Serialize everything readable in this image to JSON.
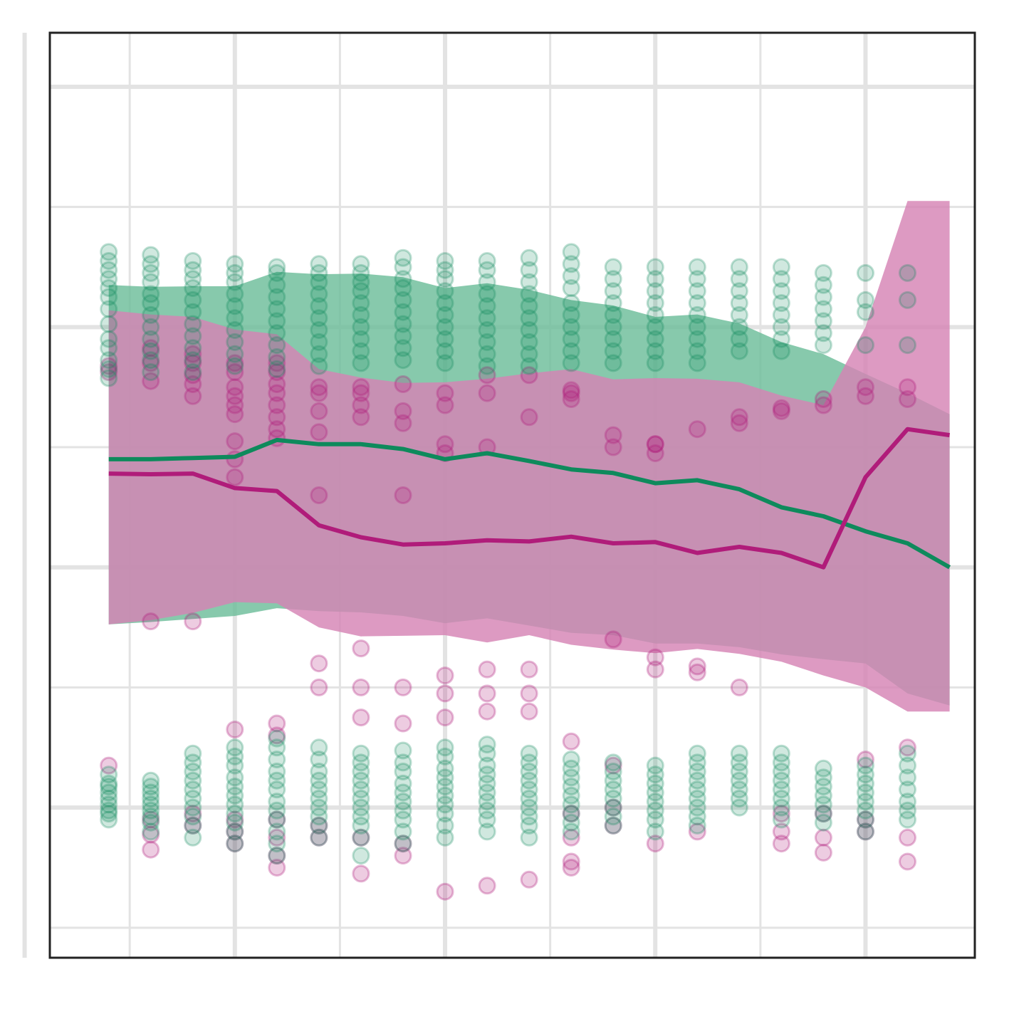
{
  "chart_data": {
    "type": "scatter",
    "title": "",
    "xlabel": "",
    "ylabel": "",
    "xlim": [
      0.6,
      22.6
    ],
    "ylim": [
      -0.65,
      0.89
    ],
    "grid": true,
    "legend": "none",
    "x_major_ticks": [
      0,
      5,
      10,
      15,
      20
    ],
    "x_minor_ticks": [
      2.5,
      7.5,
      12.5,
      17.5
    ],
    "y_major_ticks": [
      -0.4,
      0.0,
      0.4,
      0.8
    ],
    "y_minor_ticks": [
      -0.6,
      -0.2,
      0.2,
      0.6
    ],
    "x": [
      2,
      3,
      4,
      5,
      6,
      7,
      8,
      9,
      10,
      11,
      12,
      13,
      14,
      15,
      16,
      17,
      18,
      19,
      20,
      21,
      22
    ],
    "series": [
      {
        "color": "#0e8a5c",
        "band_color": "#6cbd9a",
        "point_alpha": 0.22,
        "mean": [
          0.18,
          0.18,
          0.182,
          0.184,
          0.212,
          0.205,
          0.205,
          0.197,
          0.18,
          0.19,
          0.177,
          0.163,
          0.157,
          0.14,
          0.145,
          0.13,
          0.1,
          0.085,
          0.06,
          0.04,
          0.0
        ],
        "upper": [
          0.47,
          0.467,
          0.468,
          0.468,
          0.492,
          0.488,
          0.489,
          0.483,
          0.465,
          0.473,
          0.462,
          0.445,
          0.436,
          0.417,
          0.421,
          0.406,
          0.375,
          0.355,
          0.322,
          0.29,
          0.255
        ],
        "lower": [
          -0.095,
          -0.091,
          -0.086,
          -0.081,
          -0.068,
          -0.073,
          -0.075,
          -0.081,
          -0.093,
          -0.085,
          -0.097,
          -0.109,
          -0.113,
          -0.127,
          -0.127,
          -0.133,
          -0.145,
          -0.153,
          -0.16,
          -0.21,
          -0.23
        ],
        "points": [
          [
            0.525,
            0.51,
            0.495,
            0.48,
            0.465,
            0.45,
            0.43,
            0.405,
            0.38,
            0.365,
            0.345,
            0.33,
            0.315,
            -0.345,
            -0.36,
            -0.365,
            -0.375,
            -0.385,
            -0.395,
            -0.405,
            -0.41,
            -0.42
          ],
          [
            0.52,
            0.505,
            0.49,
            0.475,
            0.455,
            0.44,
            0.42,
            0.4,
            0.38,
            0.36,
            0.345,
            0.325,
            -0.355,
            -0.365,
            -0.375,
            -0.385,
            -0.395,
            -0.405,
            -0.415,
            -0.425,
            -0.44
          ],
          [
            0.51,
            0.495,
            0.48,
            0.465,
            0.445,
            0.425,
            0.405,
            0.385,
            0.365,
            0.345,
            0.325,
            -0.31,
            -0.325,
            -0.34,
            -0.355,
            -0.37,
            -0.385,
            -0.4,
            -0.415,
            -0.43,
            -0.45
          ],
          [
            0.505,
            0.49,
            0.475,
            0.455,
            0.435,
            0.415,
            0.395,
            0.375,
            0.355,
            0.335,
            -0.3,
            -0.315,
            -0.33,
            -0.35,
            -0.365,
            -0.38,
            -0.395,
            -0.41,
            -0.425,
            -0.44,
            -0.46
          ],
          [
            0.5,
            0.49,
            0.47,
            0.45,
            0.43,
            0.41,
            0.39,
            0.37,
            0.35,
            0.33,
            -0.285,
            -0.3,
            -0.32,
            -0.34,
            -0.355,
            -0.37,
            -0.39,
            -0.405,
            -0.42,
            -0.44,
            -0.46,
            -0.48
          ],
          [
            0.505,
            0.49,
            0.475,
            0.455,
            0.435,
            0.415,
            0.395,
            0.375,
            0.355,
            0.335,
            -0.3,
            -0.32,
            -0.34,
            -0.355,
            -0.37,
            -0.385,
            -0.4,
            -0.415,
            -0.43,
            -0.45
          ],
          [
            0.505,
            0.49,
            0.475,
            0.46,
            0.44,
            0.42,
            0.4,
            0.38,
            0.36,
            0.34,
            -0.31,
            -0.325,
            -0.34,
            -0.355,
            -0.37,
            -0.385,
            -0.4,
            -0.415,
            -0.43,
            -0.45,
            -0.48
          ],
          [
            0.515,
            0.5,
            0.48,
            0.465,
            0.445,
            0.425,
            0.405,
            0.385,
            0.365,
            0.345,
            -0.305,
            -0.325,
            -0.34,
            -0.36,
            -0.375,
            -0.39,
            -0.405,
            -0.42,
            -0.44,
            -0.46
          ],
          [
            0.51,
            0.495,
            0.48,
            0.46,
            0.44,
            0.42,
            0.4,
            0.38,
            0.36,
            0.34,
            -0.3,
            -0.315,
            -0.335,
            -0.35,
            -0.365,
            -0.38,
            -0.395,
            -0.41,
            -0.43,
            -0.45
          ],
          [
            0.51,
            0.495,
            0.475,
            0.455,
            0.435,
            0.415,
            0.395,
            0.375,
            0.355,
            0.335,
            -0.295,
            -0.31,
            -0.33,
            -0.345,
            -0.36,
            -0.375,
            -0.39,
            -0.405,
            -0.42,
            -0.44
          ],
          [
            0.515,
            0.495,
            0.475,
            0.455,
            0.435,
            0.415,
            0.395,
            0.375,
            0.355,
            0.335,
            -0.31,
            -0.325,
            -0.34,
            -0.355,
            -0.37,
            -0.385,
            -0.4,
            -0.415,
            -0.43,
            -0.45
          ],
          [
            0.525,
            0.505,
            0.485,
            0.465,
            0.44,
            0.42,
            0.4,
            0.38,
            0.36,
            0.34,
            -0.32,
            -0.335,
            -0.35,
            -0.365,
            -0.38,
            -0.395,
            -0.41,
            -0.425,
            -0.44
          ],
          [
            0.5,
            0.48,
            0.46,
            0.44,
            0.42,
            0.4,
            0.38,
            0.36,
            0.34,
            -0.325,
            -0.34,
            -0.355,
            -0.37,
            -0.385,
            -0.4,
            -0.415,
            -0.43
          ],
          [
            0.5,
            0.48,
            0.46,
            0.44,
            0.42,
            0.4,
            0.38,
            0.36,
            0.34,
            -0.33,
            -0.345,
            -0.36,
            -0.375,
            -0.39,
            -0.405,
            -0.42,
            -0.44
          ],
          [
            0.5,
            0.48,
            0.46,
            0.44,
            0.42,
            0.4,
            0.38,
            0.36,
            0.34,
            -0.31,
            -0.325,
            -0.34,
            -0.355,
            -0.37,
            -0.385,
            -0.4,
            -0.415,
            -0.43
          ],
          [
            0.5,
            0.48,
            0.46,
            0.44,
            0.42,
            0.4,
            0.38,
            0.36,
            -0.31,
            -0.325,
            -0.34,
            -0.355,
            -0.37,
            -0.385,
            -0.4
          ],
          [
            0.5,
            0.48,
            0.46,
            0.44,
            0.42,
            0.4,
            0.38,
            0.36,
            -0.31,
            -0.325,
            -0.34,
            -0.355,
            -0.37,
            -0.385,
            -0.4,
            -0.42
          ],
          [
            0.49,
            0.47,
            0.45,
            0.43,
            0.41,
            0.39,
            0.37,
            -0.335,
            -0.35,
            -0.365,
            -0.38,
            -0.395,
            -0.41,
            -0.425
          ],
          [
            0.49,
            0.445,
            0.425,
            0.37,
            -0.33,
            -0.345,
            -0.36,
            -0.375,
            -0.39,
            -0.405,
            -0.42,
            -0.44
          ],
          [
            0.49,
            0.445,
            0.37,
            -0.31,
            -0.33,
            -0.35,
            -0.37,
            -0.39,
            -0.405,
            -0.42
          ],
          []
        ]
      },
      {
        "color": "#b01c7a",
        "band_color": "#d684b4",
        "point_alpha": 0.25,
        "mean": [
          0.156,
          0.155,
          0.156,
          0.132,
          0.127,
          0.07,
          0.05,
          0.038,
          0.04,
          0.045,
          0.043,
          0.051,
          0.04,
          0.042,
          0.024,
          0.034,
          0.024,
          0.0,
          0.15,
          0.23,
          0.22
        ],
        "upper": [
          0.428,
          0.421,
          0.417,
          0.396,
          0.388,
          0.33,
          0.316,
          0.307,
          0.308,
          0.314,
          0.323,
          0.33,
          0.313,
          0.315,
          0.314,
          0.308,
          0.286,
          0.27,
          0.4,
          0.61,
          0.61
        ],
        "lower": [
          -0.095,
          -0.088,
          -0.076,
          -0.058,
          -0.06,
          -0.1,
          -0.115,
          -0.114,
          -0.113,
          -0.125,
          -0.113,
          -0.129,
          -0.137,
          -0.143,
          -0.136,
          -0.144,
          -0.157,
          -0.18,
          -0.2,
          -0.24,
          -0.24
        ],
        "points": [
          [
            0.335,
            0.325,
            -0.33
          ],
          [
            0.365,
            0.34,
            0.31,
            -0.09,
            -0.42,
            -0.445,
            -0.47
          ],
          [
            0.355,
            0.34,
            0.32,
            0.305,
            0.285,
            -0.09,
            -0.41,
            -0.43
          ],
          [
            0.34,
            0.325,
            0.3,
            0.285,
            0.27,
            0.255,
            0.21,
            0.18,
            0.15,
            -0.27,
            -0.42,
            -0.44,
            -0.46
          ],
          [
            0.34,
            0.325,
            0.305,
            0.29,
            0.27,
            0.25,
            0.23,
            0.215,
            -0.26,
            -0.28,
            -0.42,
            -0.45,
            -0.48,
            -0.5
          ],
          [
            0.3,
            0.29,
            0.26,
            0.225,
            0.12,
            -0.16,
            -0.2,
            -0.43,
            -0.45
          ],
          [
            0.3,
            0.29,
            0.27,
            0.25,
            -0.135,
            -0.2,
            -0.25,
            -0.45,
            -0.51
          ],
          [
            0.305,
            0.26,
            0.24,
            0.12,
            -0.2,
            -0.26,
            -0.46,
            -0.48
          ],
          [
            0.29,
            0.27,
            0.205,
            0.19,
            -0.18,
            -0.21,
            -0.25,
            -0.54
          ],
          [
            0.32,
            0.29,
            0.2,
            -0.17,
            -0.21,
            -0.24,
            -0.53
          ],
          [
            0.32,
            0.25,
            -0.17,
            -0.21,
            -0.24,
            -0.52
          ],
          [
            0.295,
            0.29,
            0.28,
            -0.29,
            -0.41,
            -0.45,
            -0.49,
            -0.5
          ],
          [
            0.22,
            0.2,
            -0.12,
            -0.33,
            -0.4,
            -0.43
          ],
          [
            0.205,
            0.205,
            0.19,
            -0.15,
            -0.17,
            -0.46
          ],
          [
            0.23,
            -0.165,
            -0.175,
            -0.44
          ],
          [
            0.25,
            0.24,
            -0.2
          ],
          [
            0.265,
            0.26,
            -0.41,
            -0.44,
            -0.46
          ],
          [
            0.28,
            0.27,
            -0.41,
            -0.45,
            -0.475
          ],
          [
            0.3,
            0.285,
            -0.32,
            -0.42,
            -0.44
          ],
          [
            0.3,
            0.28,
            -0.3,
            -0.45,
            -0.49
          ],
          []
        ]
      }
    ]
  }
}
